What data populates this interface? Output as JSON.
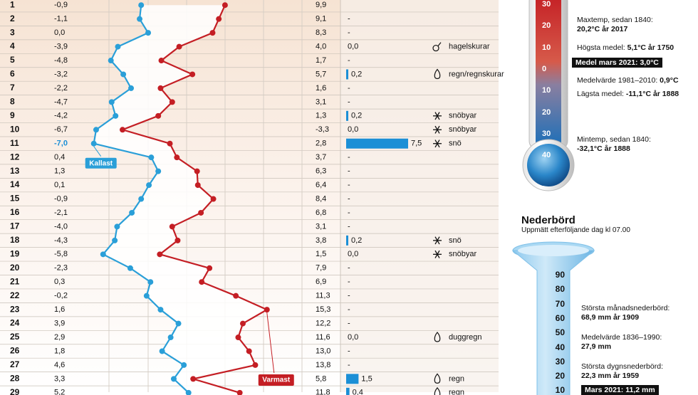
{
  "chart_data": {
    "type": "table",
    "month": "mars 2021",
    "day_rows": [
      {
        "day": "1",
        "min": "-0,9",
        "max": "9,9",
        "precip": null,
        "weather": null,
        "icon": null
      },
      {
        "day": "2",
        "min": "-1,1",
        "max": "9,1",
        "precip": "-",
        "weather": null,
        "icon": null
      },
      {
        "day": "3",
        "min": "0,0",
        "max": "8,3",
        "precip": "-",
        "weather": null,
        "icon": null
      },
      {
        "day": "4",
        "min": "-3,9",
        "max": "4,0",
        "precip": "0,0",
        "weather": "hagelskurar",
        "icon": "hail-icon"
      },
      {
        "day": "5",
        "min": "-4,8",
        "max": "1,7",
        "precip": "-",
        "weather": null,
        "icon": null
      },
      {
        "day": "6",
        "min": "-3,2",
        "max": "5,7",
        "precip": "0,2",
        "weather": "regn/regnskurar",
        "icon": "drop-icon"
      },
      {
        "day": "7",
        "min": "-2,2",
        "max": "1,6",
        "precip": "-",
        "weather": null,
        "icon": null
      },
      {
        "day": "8",
        "min": "-4,7",
        "max": "3,1",
        "precip": "-",
        "weather": null,
        "icon": null
      },
      {
        "day": "9",
        "min": "-4,2",
        "max": "1,3",
        "precip": "0,2",
        "weather": "snöbyar",
        "icon": "snowflake-icon"
      },
      {
        "day": "10",
        "min": "-6,7",
        "max": "-3,3",
        "precip": "0,0",
        "weather": "snöbyar",
        "icon": "snowflake-icon"
      },
      {
        "day": "11",
        "min": "-7,0",
        "max": "2,8",
        "precip": "7,5",
        "weather": "snö",
        "icon": "snowflake-icon"
      },
      {
        "day": "12",
        "min": "0,4",
        "max": "3,7",
        "precip": "-",
        "weather": null,
        "icon": null
      },
      {
        "day": "13",
        "min": "1,3",
        "max": "6,3",
        "precip": "-",
        "weather": null,
        "icon": null
      },
      {
        "day": "14",
        "min": "0,1",
        "max": "6,4",
        "precip": "-",
        "weather": null,
        "icon": null
      },
      {
        "day": "15",
        "min": "-0,9",
        "max": "8,4",
        "precip": "-",
        "weather": null,
        "icon": null
      },
      {
        "day": "16",
        "min": "-2,1",
        "max": "6,8",
        "precip": "-",
        "weather": null,
        "icon": null
      },
      {
        "day": "17",
        "min": "-4,0",
        "max": "3,1",
        "precip": "-",
        "weather": null,
        "icon": null
      },
      {
        "day": "18",
        "min": "-4,3",
        "max": "3,8",
        "precip": "0,2",
        "weather": "snö",
        "icon": "snowflake-icon"
      },
      {
        "day": "19",
        "min": "-5,8",
        "max": "1,5",
        "precip": "0,0",
        "weather": "snöbyar",
        "icon": "snowflake-icon"
      },
      {
        "day": "20",
        "min": "-2,3",
        "max": "7,9",
        "precip": "-",
        "weather": null,
        "icon": null
      },
      {
        "day": "21",
        "min": "0,3",
        "max": "6,9",
        "precip": "-",
        "weather": null,
        "icon": null
      },
      {
        "day": "22",
        "min": "-0,2",
        "max": "11,3",
        "precip": "-",
        "weather": null,
        "icon": null
      },
      {
        "day": "23",
        "min": "1,6",
        "max": "15,3",
        "precip": "-",
        "weather": null,
        "icon": null
      },
      {
        "day": "24",
        "min": "3,9",
        "max": "12,2",
        "precip": "-",
        "weather": null,
        "icon": null
      },
      {
        "day": "25",
        "min": "2,9",
        "max": "11,6",
        "precip": "0,0",
        "weather": "duggregn",
        "icon": "drop-icon"
      },
      {
        "day": "26",
        "min": "1,8",
        "max": "13,0",
        "precip": "-",
        "weather": null,
        "icon": null
      },
      {
        "day": "27",
        "min": "4,6",
        "max": "13,8",
        "precip": "-",
        "weather": null,
        "icon": null
      },
      {
        "day": "28",
        "min": "3,3",
        "max": "5,8",
        "precip": "1,5",
        "weather": "regn",
        "icon": "drop-icon"
      },
      {
        "day": "29",
        "min": "5,2",
        "max": "11,8",
        "precip": "0,4",
        "weather": "regn",
        "icon": "drop-icon"
      }
    ],
    "min_values": [
      -0.9,
      -1.1,
      0.0,
      -3.9,
      -4.8,
      -3.2,
      -2.2,
      -4.7,
      -4.2,
      -6.7,
      -7.0,
      0.4,
      1.3,
      0.1,
      -0.9,
      -2.1,
      -4.0,
      -4.3,
      -5.8,
      -2.3,
      0.3,
      -0.2,
      1.6,
      3.9,
      2.9,
      1.8,
      4.6,
      3.3,
      5.2
    ],
    "max_values": [
      9.9,
      9.1,
      8.3,
      4.0,
      1.7,
      5.7,
      1.6,
      3.1,
      1.3,
      -3.3,
      2.8,
      3.7,
      6.3,
      6.4,
      8.4,
      6.8,
      3.1,
      3.8,
      1.5,
      7.9,
      6.9,
      11.3,
      15.3,
      12.2,
      11.6,
      13.0,
      13.8,
      5.8,
      11.8
    ],
    "precip_values": [
      null,
      null,
      null,
      0.0,
      null,
      0.2,
      null,
      null,
      0.2,
      0.0,
      7.5,
      null,
      null,
      null,
      null,
      null,
      null,
      0.2,
      0.0,
      null,
      null,
      null,
      null,
      null,
      0.0,
      null,
      null,
      1.5,
      0.4
    ],
    "min_label": "Kallast",
    "max_label": "Varmast",
    "colors": {
      "min": "#2a9fd8",
      "max": "#c41e24",
      "precip": "#1b8fd6"
    }
  },
  "thermometer": {
    "scale": [
      "30",
      "20",
      "10",
      "0",
      "10",
      "20",
      "30",
      "40"
    ],
    "annotations": [
      {
        "line1": "Maxtemp, sedan 1840:",
        "line2": "20,2°C år 2017"
      },
      {
        "prefix": "Högsta medel: ",
        "value": "5,1°C år 1750"
      },
      {
        "prefix": "Medel mars 2021: ",
        "value": "3,0°C"
      },
      {
        "prefix": "Medelvärde 1981–2010: ",
        "value": "0,9°C"
      },
      {
        "prefix": "Lägsta medel: ",
        "value": "-11,1°C år 1888"
      },
      {
        "line1": "Mintemp, sedan 1840:",
        "line2": "-32,1°C år 1888"
      }
    ]
  },
  "precipitation": {
    "title": "Nederbörd",
    "subtitle": "Uppmätt efterföljande dag kl 07.00",
    "scale": [
      "90",
      "80",
      "70",
      "60",
      "50",
      "40",
      "30",
      "20",
      "10"
    ],
    "annotations": [
      {
        "line1": "Största månadsnederbörd:",
        "line2": "68,9 mm år 1909"
      },
      {
        "line1": "Medelvärde 1836–1990:",
        "line2": "27,9 mm"
      },
      {
        "line1": "Största dygnsnederbörd:",
        "line2": "22,3 mm år 1959"
      },
      {
        "prefix": "Mars 2021: ",
        "value": "11,2 mm"
      }
    ]
  }
}
